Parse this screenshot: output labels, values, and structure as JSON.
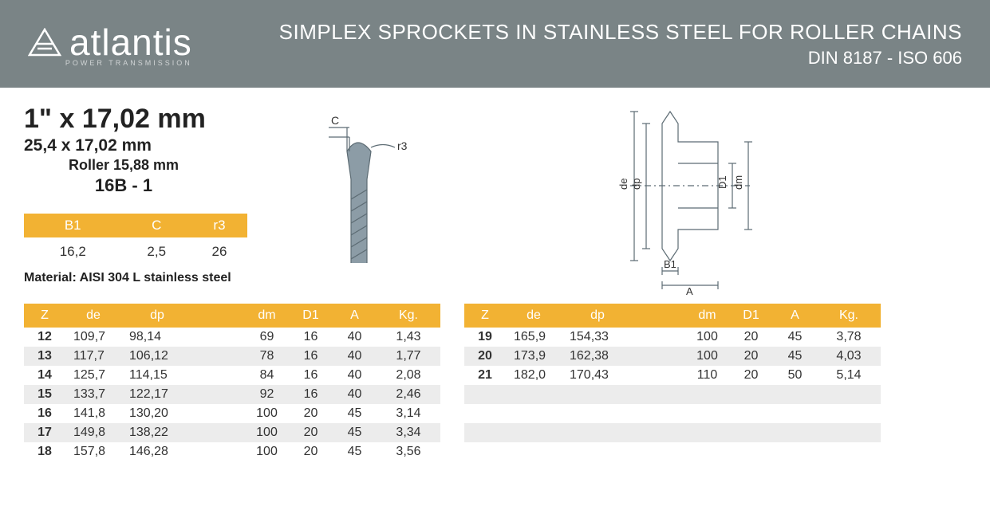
{
  "header": {
    "brand": "atlantis",
    "tagline": "POWER TRANSMISSION",
    "title": "SIMPLEX SPROCKETS IN STAINLESS STEEL FOR ROLLER CHAINS",
    "subtitle": "DIN 8187 - ISO 606",
    "bg_color": "#7a8486",
    "text_color": "#ffffff"
  },
  "spec": {
    "size_imperial": "1\" x 17,02 mm",
    "size_metric": "25,4 x 17,02 mm",
    "roller": "Roller 15,88 mm",
    "code": "16B - 1"
  },
  "small_table": {
    "headers": [
      "B1",
      "C",
      "r3"
    ],
    "values": [
      "16,2",
      "2,5",
      "26"
    ],
    "header_bg": "#f2b233",
    "header_text_color": "#ffffff"
  },
  "material": "Material: AISI 304 L stainless steel",
  "diagram_labels": {
    "C": "C",
    "r3": "r3",
    "de": "de",
    "dp": "dp",
    "D1": "D1",
    "dm": "dm",
    "B1": "B1",
    "A": "A"
  },
  "main_table": {
    "header_bg": "#f2b233",
    "alt_row_bg": "#ececec",
    "headers": [
      "Z",
      "de",
      "dp",
      "",
      "dm",
      "D1",
      "A",
      "Kg."
    ],
    "left_rows": [
      {
        "Z": "12",
        "de": "109,7",
        "dp": "98,14",
        "dm": "69",
        "D1": "16",
        "A": "40",
        "Kg": "1,43",
        "alt": false
      },
      {
        "Z": "13",
        "de": "117,7",
        "dp": "106,12",
        "dm": "78",
        "D1": "16",
        "A": "40",
        "Kg": "1,77",
        "alt": true
      },
      {
        "Z": "14",
        "de": "125,7",
        "dp": "114,15",
        "dm": "84",
        "D1": "16",
        "A": "40",
        "Kg": "2,08",
        "alt": false
      },
      {
        "Z": "15",
        "de": "133,7",
        "dp": "122,17",
        "dm": "92",
        "D1": "16",
        "A": "40",
        "Kg": "2,46",
        "alt": true
      },
      {
        "Z": "16",
        "de": "141,8",
        "dp": "130,20",
        "dm": "100",
        "D1": "20",
        "A": "45",
        "Kg": "3,14",
        "alt": false
      },
      {
        "Z": "17",
        "de": "149,8",
        "dp": "138,22",
        "dm": "100",
        "D1": "20",
        "A": "45",
        "Kg": "3,34",
        "alt": true
      },
      {
        "Z": "18",
        "de": "157,8",
        "dp": "146,28",
        "dm": "100",
        "D1": "20",
        "A": "45",
        "Kg": "3,56",
        "alt": false
      }
    ],
    "right_rows": [
      {
        "Z": "19",
        "de": "165,9",
        "dp": "154,33",
        "dm": "100",
        "D1": "20",
        "A": "45",
        "Kg": "3,78",
        "alt": false
      },
      {
        "Z": "20",
        "de": "173,9",
        "dp": "162,38",
        "dm": "100",
        "D1": "20",
        "A": "45",
        "Kg": "4,03",
        "alt": true
      },
      {
        "Z": "21",
        "de": "182,0",
        "dp": "170,43",
        "dm": "110",
        "D1": "20",
        "A": "50",
        "Kg": "5,14",
        "alt": false
      },
      {
        "Z": "",
        "de": "",
        "dp": "",
        "dm": "",
        "D1": "",
        "A": "",
        "Kg": "",
        "alt": true
      },
      {
        "Z": "",
        "de": "",
        "dp": "",
        "dm": "",
        "D1": "",
        "A": "",
        "Kg": "",
        "alt": false
      },
      {
        "Z": "",
        "de": "",
        "dp": "",
        "dm": "",
        "D1": "",
        "A": "",
        "Kg": "",
        "alt": true
      },
      {
        "Z": "",
        "de": "",
        "dp": "",
        "dm": "",
        "D1": "",
        "A": "",
        "Kg": "",
        "alt": false
      }
    ]
  },
  "colors": {
    "accent": "#f2b233",
    "body_text": "#222222",
    "diagram_line": "#5c6b73",
    "diagram_fill": "#8c9ca6"
  }
}
